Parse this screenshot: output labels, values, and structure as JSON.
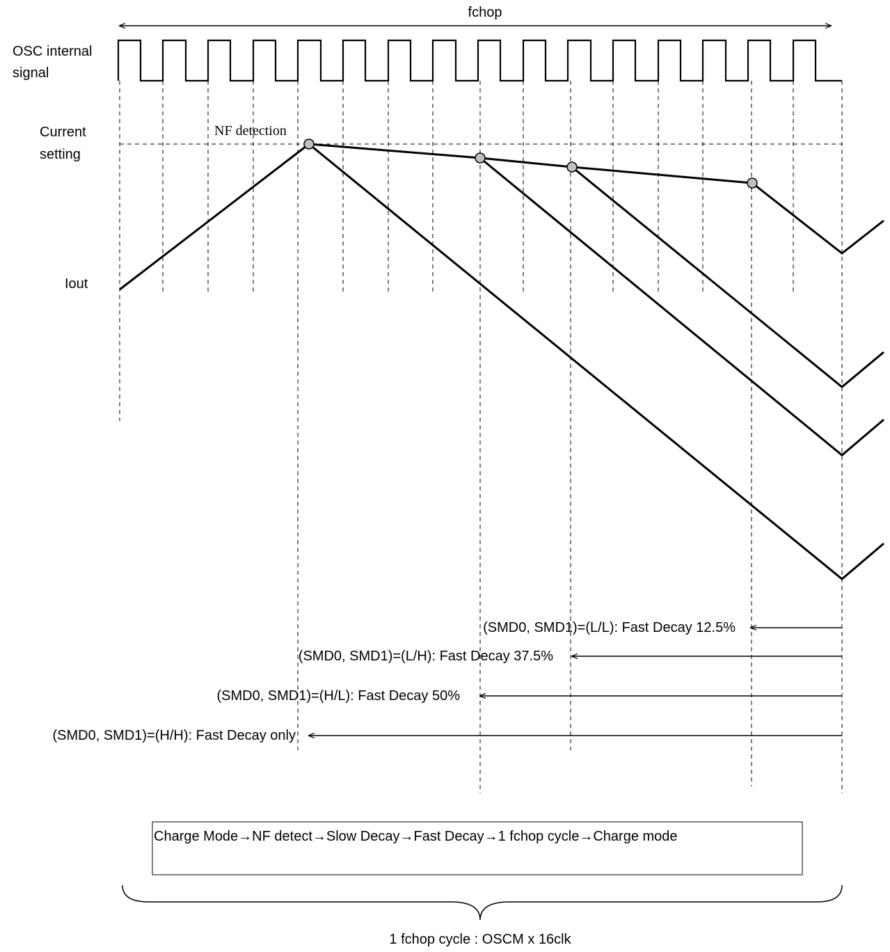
{
  "labels": {
    "fchop": "fchop",
    "osc_line1": "OSC internal",
    "osc_line2": "signal",
    "current_line1": "Current",
    "current_line2": "setting",
    "iout": "Iout",
    "nf_detection": "NF detection"
  },
  "modes": [
    {
      "id": "ll",
      "text": "(SMD0, SMD1)=(L/L): Fast Decay 12.5%"
    },
    {
      "id": "lh",
      "text": "(SMD0, SMD1)=(L/H): Fast Decay 37.5%"
    },
    {
      "id": "hl",
      "text": "(SMD0, SMD1)=(H/L): Fast Decay 50%"
    },
    {
      "id": "hh",
      "text": "(SMD0, SMD1)=(H/H): Fast Decay only"
    }
  ],
  "sequence_text": "Charge Mode→NF detect→Slow Decay→Fast Decay→1 fchop cycle→Charge mode",
  "cycle_caption": "1 fchop cycle : OSCM x 16clk",
  "colors": {
    "stroke": "#000000",
    "marker_fill": "#bfbfbf",
    "background": "#ffffff"
  }
}
